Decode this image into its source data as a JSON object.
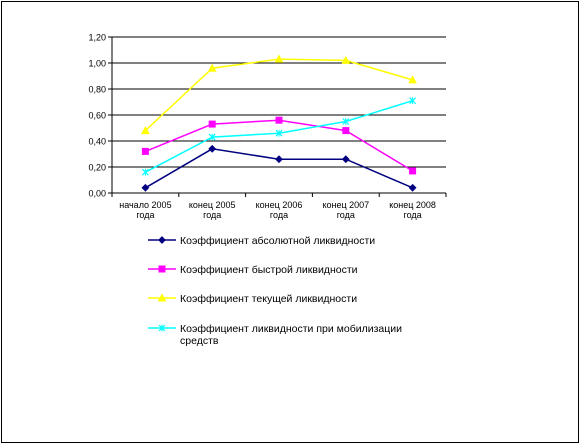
{
  "chart_data": {
    "type": "line",
    "title": "",
    "xlabel": "",
    "ylabel": "",
    "categories": [
      [
        "начало 2005",
        "года"
      ],
      [
        "конец 2005",
        "года"
      ],
      [
        "конец 2006",
        "года"
      ],
      [
        "конец 2007",
        "года"
      ],
      [
        "конец 2008",
        "года"
      ]
    ],
    "y_ticks": [
      "0,00",
      "0,20",
      "0,40",
      "0,60",
      "0,80",
      "1,00",
      "1,20"
    ],
    "ylim": [
      0,
      1.2
    ],
    "grid": "horizontal",
    "legend_position": "bottom",
    "series": [
      {
        "name": "Коэффициент абсолютной ликвидности",
        "values": [
          0.04,
          0.34,
          0.26,
          0.26,
          0.04
        ],
        "color": "#000080",
        "marker": "diamond"
      },
      {
        "name": "Коэффициент быстрой ликвидности",
        "values": [
          0.32,
          0.53,
          0.56,
          0.48,
          0.17
        ],
        "color": "#FF00FF",
        "marker": "square"
      },
      {
        "name": "Коэффициент текущей ликвидности",
        "values": [
          0.48,
          0.96,
          1.03,
          1.02,
          0.87
        ],
        "color": "#FFFF00",
        "marker": "triangle"
      },
      {
        "name": "Коэффициент ликвидности при мобилизации средств",
        "values": [
          0.16,
          0.43,
          0.46,
          0.55,
          0.71
        ],
        "color": "#00FFFF",
        "marker": "x"
      }
    ]
  }
}
